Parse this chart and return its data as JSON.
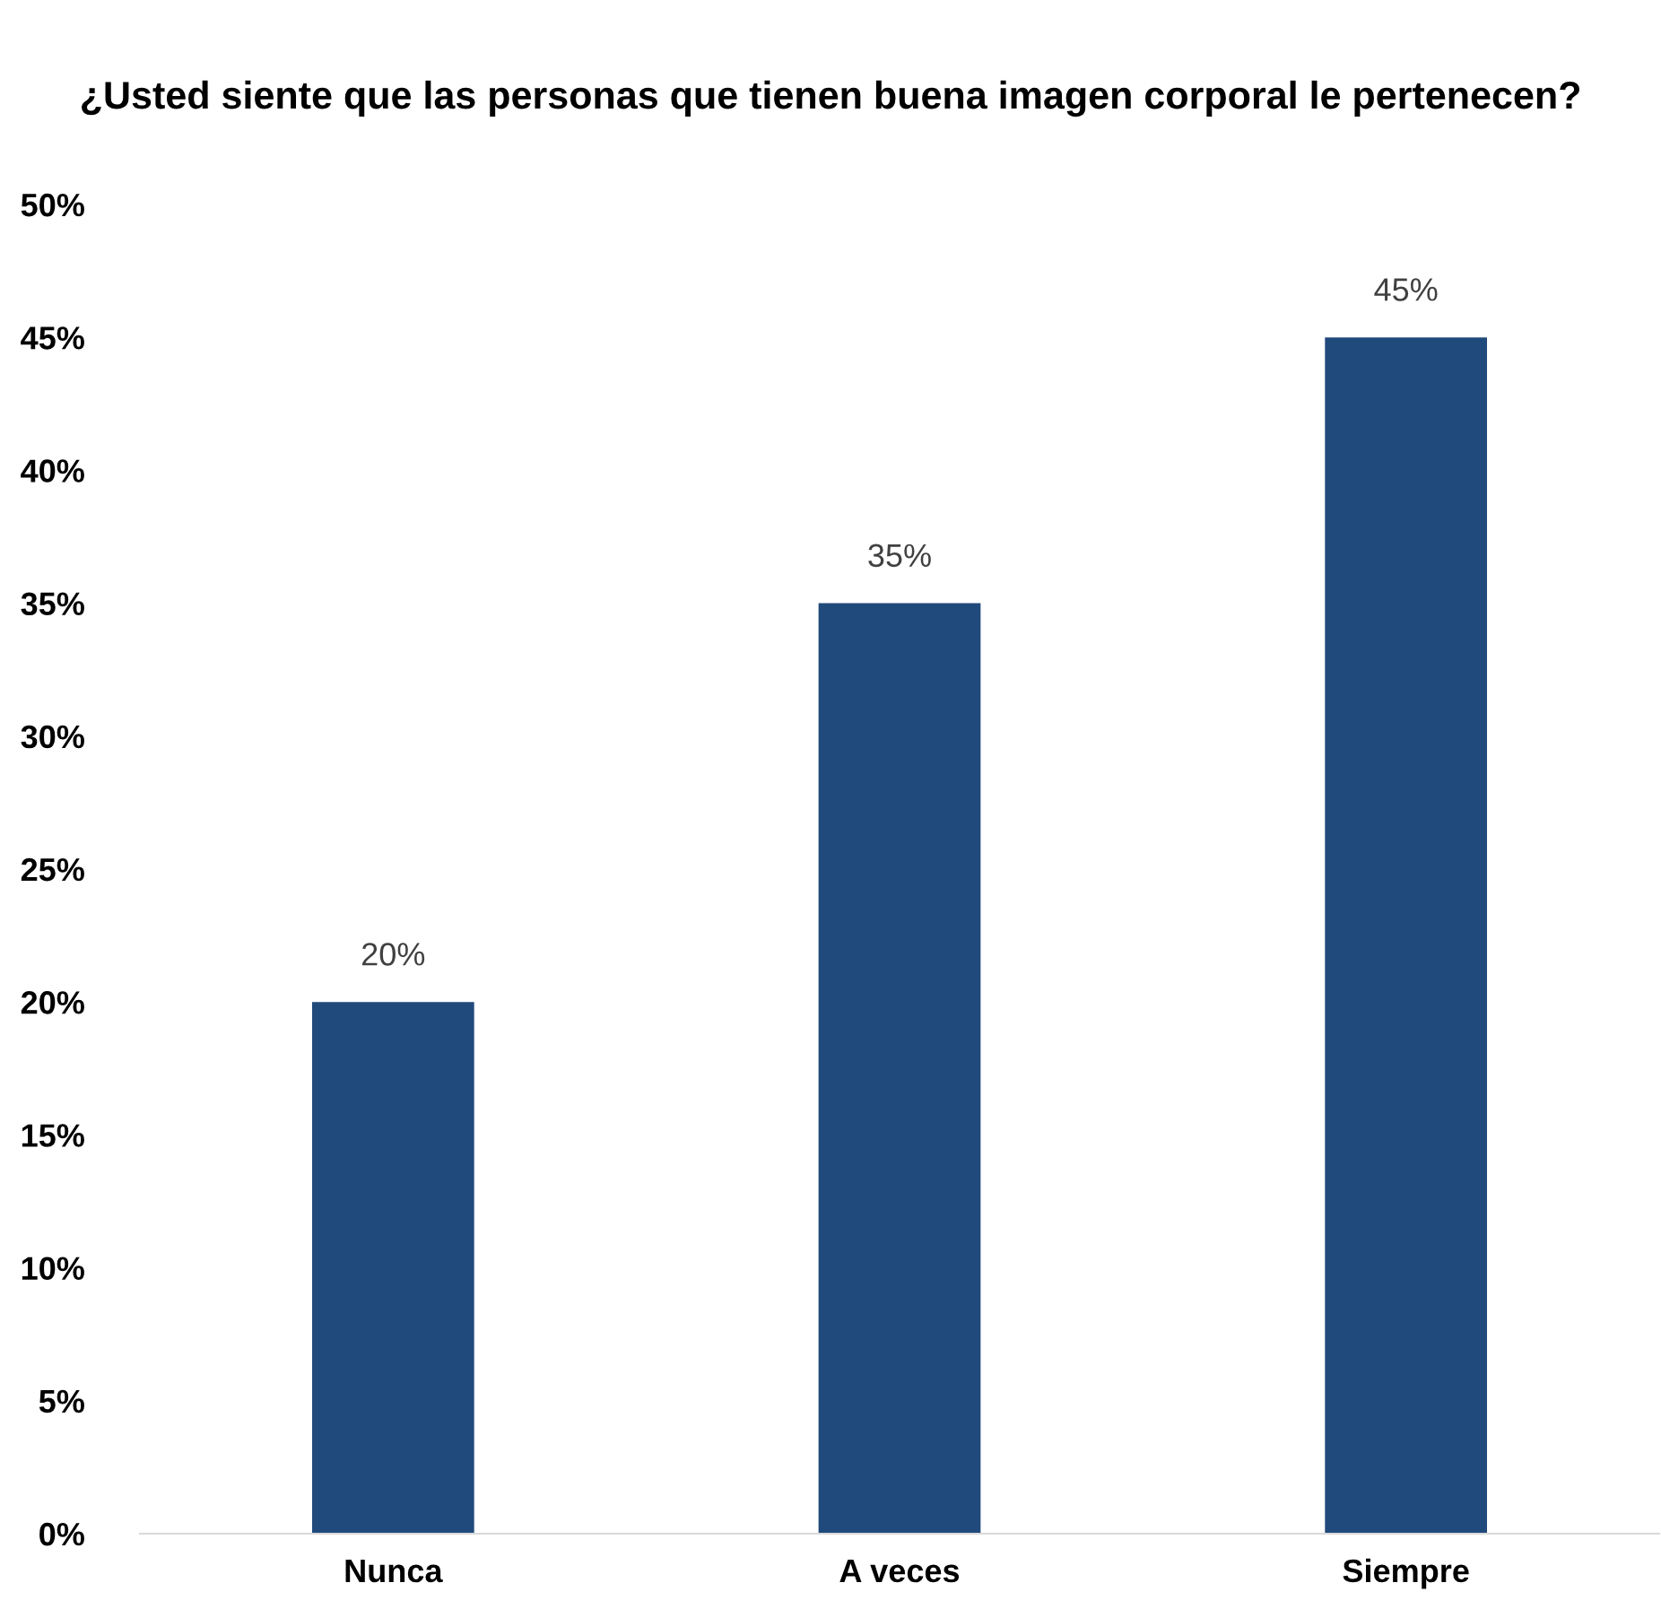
{
  "chart_data": {
    "type": "bar",
    "title": "¿Usted siente que las personas que tienen buena imagen corporal le pertenecen?",
    "categories": [
      "Nunca",
      "A veces",
      "Siempre"
    ],
    "values": [
      20,
      35,
      45
    ],
    "value_labels": [
      "20%",
      "35%",
      "45%"
    ],
    "color": "#214a7c",
    "ylim": [
      0,
      50
    ],
    "yticks": [
      {
        "value": 0,
        "label": "0%"
      },
      {
        "value": 5,
        "label": "5%"
      },
      {
        "value": 10,
        "label": "10%"
      },
      {
        "value": 15,
        "label": "15%"
      },
      {
        "value": 20,
        "label": "20%"
      },
      {
        "value": 25,
        "label": "25%"
      },
      {
        "value": 30,
        "label": "30%"
      },
      {
        "value": 35,
        "label": "35%"
      },
      {
        "value": 40,
        "label": "40%"
      },
      {
        "value": 45,
        "label": "45%"
      },
      {
        "value": 50,
        "label": "50%"
      }
    ],
    "grid": false,
    "legend": false
  }
}
